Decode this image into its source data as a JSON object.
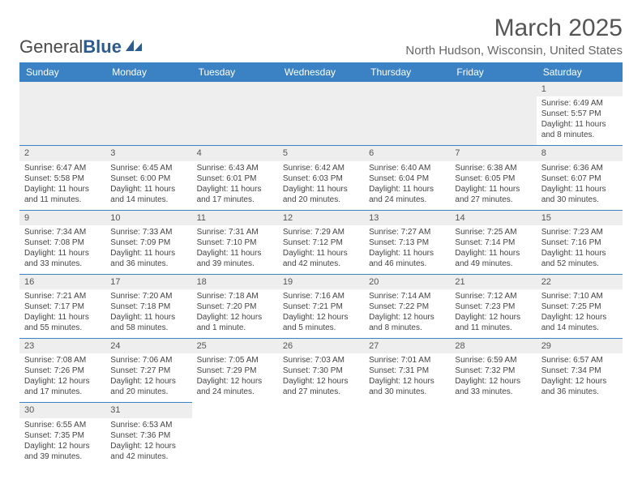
{
  "logo": {
    "text_a": "General",
    "text_b": "Blue"
  },
  "header": {
    "month_title": "March 2025",
    "location": "North Hudson, Wisconsin, United States"
  },
  "colors": {
    "header_bg": "#3b82c4",
    "header_text": "#ffffff",
    "daynum_bg": "#eeeeee",
    "border": "#3b82c4",
    "logo_blue": "#2d5b8e"
  },
  "weekdays": [
    "Sunday",
    "Monday",
    "Tuesday",
    "Wednesday",
    "Thursday",
    "Friday",
    "Saturday"
  ],
  "weeks": [
    [
      null,
      null,
      null,
      null,
      null,
      null,
      {
        "n": "1",
        "sunrise": "Sunrise: 6:49 AM",
        "sunset": "Sunset: 5:57 PM",
        "daylight": "Daylight: 11 hours and 8 minutes."
      }
    ],
    [
      {
        "n": "2",
        "sunrise": "Sunrise: 6:47 AM",
        "sunset": "Sunset: 5:58 PM",
        "daylight": "Daylight: 11 hours and 11 minutes."
      },
      {
        "n": "3",
        "sunrise": "Sunrise: 6:45 AM",
        "sunset": "Sunset: 6:00 PM",
        "daylight": "Daylight: 11 hours and 14 minutes."
      },
      {
        "n": "4",
        "sunrise": "Sunrise: 6:43 AM",
        "sunset": "Sunset: 6:01 PM",
        "daylight": "Daylight: 11 hours and 17 minutes."
      },
      {
        "n": "5",
        "sunrise": "Sunrise: 6:42 AM",
        "sunset": "Sunset: 6:03 PM",
        "daylight": "Daylight: 11 hours and 20 minutes."
      },
      {
        "n": "6",
        "sunrise": "Sunrise: 6:40 AM",
        "sunset": "Sunset: 6:04 PM",
        "daylight": "Daylight: 11 hours and 24 minutes."
      },
      {
        "n": "7",
        "sunrise": "Sunrise: 6:38 AM",
        "sunset": "Sunset: 6:05 PM",
        "daylight": "Daylight: 11 hours and 27 minutes."
      },
      {
        "n": "8",
        "sunrise": "Sunrise: 6:36 AM",
        "sunset": "Sunset: 6:07 PM",
        "daylight": "Daylight: 11 hours and 30 minutes."
      }
    ],
    [
      {
        "n": "9",
        "sunrise": "Sunrise: 7:34 AM",
        "sunset": "Sunset: 7:08 PM",
        "daylight": "Daylight: 11 hours and 33 minutes."
      },
      {
        "n": "10",
        "sunrise": "Sunrise: 7:33 AM",
        "sunset": "Sunset: 7:09 PM",
        "daylight": "Daylight: 11 hours and 36 minutes."
      },
      {
        "n": "11",
        "sunrise": "Sunrise: 7:31 AM",
        "sunset": "Sunset: 7:10 PM",
        "daylight": "Daylight: 11 hours and 39 minutes."
      },
      {
        "n": "12",
        "sunrise": "Sunrise: 7:29 AM",
        "sunset": "Sunset: 7:12 PM",
        "daylight": "Daylight: 11 hours and 42 minutes."
      },
      {
        "n": "13",
        "sunrise": "Sunrise: 7:27 AM",
        "sunset": "Sunset: 7:13 PM",
        "daylight": "Daylight: 11 hours and 46 minutes."
      },
      {
        "n": "14",
        "sunrise": "Sunrise: 7:25 AM",
        "sunset": "Sunset: 7:14 PM",
        "daylight": "Daylight: 11 hours and 49 minutes."
      },
      {
        "n": "15",
        "sunrise": "Sunrise: 7:23 AM",
        "sunset": "Sunset: 7:16 PM",
        "daylight": "Daylight: 11 hours and 52 minutes."
      }
    ],
    [
      {
        "n": "16",
        "sunrise": "Sunrise: 7:21 AM",
        "sunset": "Sunset: 7:17 PM",
        "daylight": "Daylight: 11 hours and 55 minutes."
      },
      {
        "n": "17",
        "sunrise": "Sunrise: 7:20 AM",
        "sunset": "Sunset: 7:18 PM",
        "daylight": "Daylight: 11 hours and 58 minutes."
      },
      {
        "n": "18",
        "sunrise": "Sunrise: 7:18 AM",
        "sunset": "Sunset: 7:20 PM",
        "daylight": "Daylight: 12 hours and 1 minute."
      },
      {
        "n": "19",
        "sunrise": "Sunrise: 7:16 AM",
        "sunset": "Sunset: 7:21 PM",
        "daylight": "Daylight: 12 hours and 5 minutes."
      },
      {
        "n": "20",
        "sunrise": "Sunrise: 7:14 AM",
        "sunset": "Sunset: 7:22 PM",
        "daylight": "Daylight: 12 hours and 8 minutes."
      },
      {
        "n": "21",
        "sunrise": "Sunrise: 7:12 AM",
        "sunset": "Sunset: 7:23 PM",
        "daylight": "Daylight: 12 hours and 11 minutes."
      },
      {
        "n": "22",
        "sunrise": "Sunrise: 7:10 AM",
        "sunset": "Sunset: 7:25 PM",
        "daylight": "Daylight: 12 hours and 14 minutes."
      }
    ],
    [
      {
        "n": "23",
        "sunrise": "Sunrise: 7:08 AM",
        "sunset": "Sunset: 7:26 PM",
        "daylight": "Daylight: 12 hours and 17 minutes."
      },
      {
        "n": "24",
        "sunrise": "Sunrise: 7:06 AM",
        "sunset": "Sunset: 7:27 PM",
        "daylight": "Daylight: 12 hours and 20 minutes."
      },
      {
        "n": "25",
        "sunrise": "Sunrise: 7:05 AM",
        "sunset": "Sunset: 7:29 PM",
        "daylight": "Daylight: 12 hours and 24 minutes."
      },
      {
        "n": "26",
        "sunrise": "Sunrise: 7:03 AM",
        "sunset": "Sunset: 7:30 PM",
        "daylight": "Daylight: 12 hours and 27 minutes."
      },
      {
        "n": "27",
        "sunrise": "Sunrise: 7:01 AM",
        "sunset": "Sunset: 7:31 PM",
        "daylight": "Daylight: 12 hours and 30 minutes."
      },
      {
        "n": "28",
        "sunrise": "Sunrise: 6:59 AM",
        "sunset": "Sunset: 7:32 PM",
        "daylight": "Daylight: 12 hours and 33 minutes."
      },
      {
        "n": "29",
        "sunrise": "Sunrise: 6:57 AM",
        "sunset": "Sunset: 7:34 PM",
        "daylight": "Daylight: 12 hours and 36 minutes."
      }
    ],
    [
      {
        "n": "30",
        "sunrise": "Sunrise: 6:55 AM",
        "sunset": "Sunset: 7:35 PM",
        "daylight": "Daylight: 12 hours and 39 minutes."
      },
      {
        "n": "31",
        "sunrise": "Sunrise: 6:53 AM",
        "sunset": "Sunset: 7:36 PM",
        "daylight": "Daylight: 12 hours and 42 minutes."
      },
      null,
      null,
      null,
      null,
      null
    ]
  ]
}
